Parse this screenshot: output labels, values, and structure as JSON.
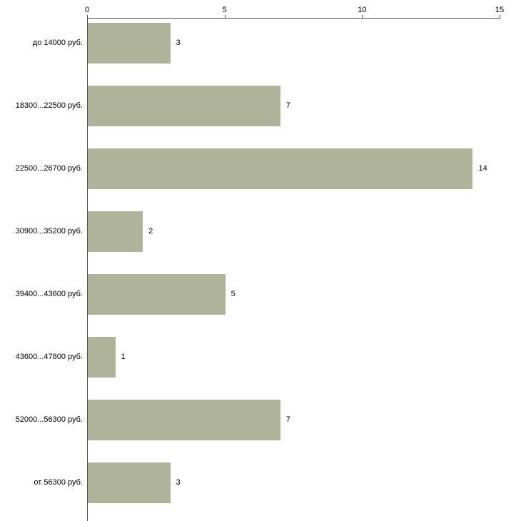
{
  "chart_data": {
    "type": "bar",
    "orientation": "horizontal",
    "title": "",
    "xlabel": "",
    "ylabel": "",
    "categories": [
      "до 14000 руб.",
      "18300...22500 руб.",
      "22500...26700 руб.",
      "30900...35200 руб.",
      "39400...43600 руб.",
      "43600...47800 руб.",
      "52000...56300 руб.",
      "от 56300 руб."
    ],
    "values": [
      3,
      7,
      14,
      2,
      5,
      1,
      7,
      3
    ],
    "x_ticks": [
      0,
      5,
      10,
      15
    ],
    "xlim": [
      0,
      15
    ],
    "grid": false,
    "legend": false,
    "value_labels": true,
    "colors": {
      "bar_fill": "#aeb399",
      "axis": "#4d4d4d",
      "text": "#000000",
      "background": "#ffffff"
    }
  }
}
